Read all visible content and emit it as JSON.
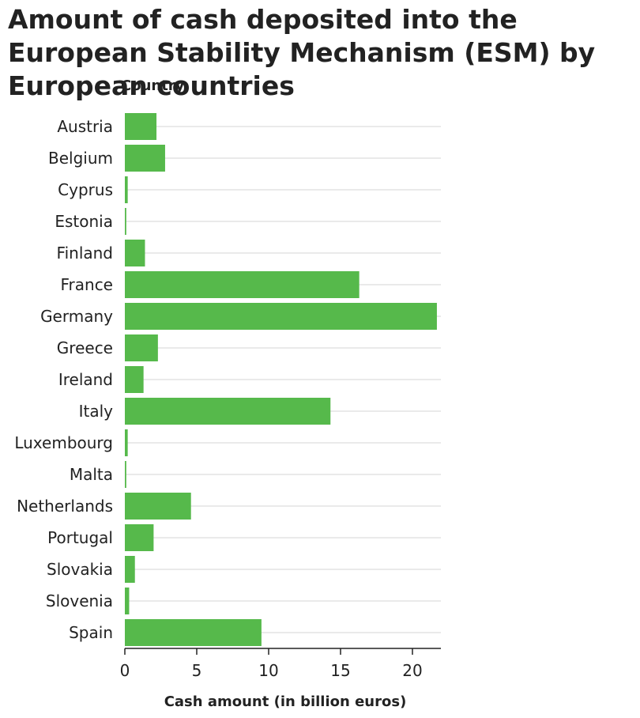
{
  "chart_data": {
    "type": "bar",
    "orientation": "horizontal",
    "title": "Amount of cash deposited into the European Stability Mechanism (ESM) by European countries",
    "ylabel": "Country",
    "xlabel": "Cash amount (in billion euros)",
    "categories": [
      "Austria",
      "Belgium",
      "Cyprus",
      "Estonia",
      "Finland",
      "France",
      "Germany",
      "Greece",
      "Ireland",
      "Italy",
      "Luxembourg",
      "Malta",
      "Netherlands",
      "Portugal",
      "Slovakia",
      "Slovenia",
      "Spain"
    ],
    "values": [
      2.2,
      2.8,
      0.2,
      0.1,
      1.4,
      16.3,
      21.7,
      2.3,
      1.3,
      14.3,
      0.2,
      0.1,
      4.6,
      2.0,
      0.7,
      0.3,
      9.5
    ],
    "xlim": [
      0,
      22
    ],
    "xticks": [
      0,
      5,
      10,
      15,
      20
    ],
    "grid": "horizontal",
    "bar_color": "#56b94b",
    "grid_color": "#d6d6d6"
  }
}
